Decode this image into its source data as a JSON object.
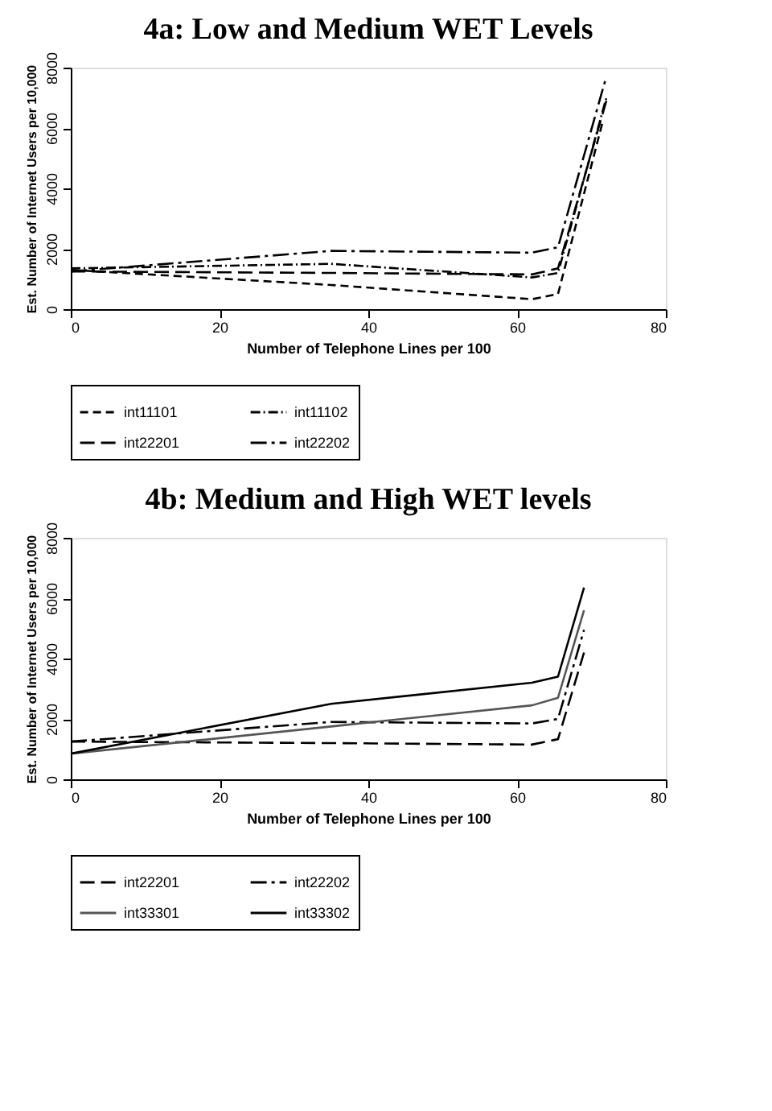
{
  "chart_data": [
    {
      "type": "line",
      "title": "4a: Low and Medium WET Levels",
      "xlabel": "Number of Telephone Lines per 100",
      "ylabel": "Est. Number of Internet Users per 10,000",
      "xlim": [
        0,
        80
      ],
      "xticks": [
        0,
        20,
        40,
        60,
        80
      ],
      "ylim": [
        0,
        8000
      ],
      "yticks": [
        0,
        2000,
        4000,
        6000,
        8000
      ],
      "grid": false,
      "legend": "bottom",
      "marker": "none",
      "series": [
        {
          "name": "int11101",
          "color": "#000000",
          "line_style": "dashed",
          "x": [
            0,
            35,
            62,
            65.5,
            71.5
          ],
          "values": [
            1300,
            800,
            330,
            500,
            6200
          ]
        },
        {
          "name": "int11102",
          "color": "#000000",
          "line_style": "dashdot",
          "x": [
            0,
            35,
            62,
            65.5,
            72
          ],
          "values": [
            1350,
            1500,
            1050,
            1200,
            7000
          ]
        },
        {
          "name": "int22201",
          "color": "#000000",
          "line_style": "longdash",
          "x": [
            0,
            35,
            62,
            65.5,
            72
          ],
          "values": [
            1250,
            1200,
            1150,
            1350,
            6900
          ]
        },
        {
          "name": "int22202",
          "color": "#000000",
          "line_style": "longdashdot",
          "x": [
            0,
            35,
            62,
            65.5,
            72
          ],
          "values": [
            1250,
            1930,
            1870,
            2050,
            7700
          ]
        }
      ]
    },
    {
      "type": "line",
      "title": "4b: Medium and High WET levels",
      "xlabel": "Number of Telephone Lines per 100",
      "ylabel": "Est. Number of Internet Users per 10,000",
      "xlim": [
        0,
        80
      ],
      "xticks": [
        0,
        20,
        40,
        60,
        80
      ],
      "ylim": [
        0,
        8000
      ],
      "yticks": [
        0,
        2000,
        4000,
        6000,
        8000
      ],
      "grid": false,
      "legend": "bottom",
      "marker": "none",
      "series": [
        {
          "name": "int22201",
          "color": "#000000",
          "line_style": "longdash",
          "x": [
            0,
            35,
            62,
            65.5,
            69
          ],
          "values": [
            1250,
            1200,
            1150,
            1330,
            4200
          ]
        },
        {
          "name": "int22202",
          "color": "#000000",
          "line_style": "longdashdot",
          "x": [
            0,
            35,
            62,
            65.5,
            69
          ],
          "values": [
            1250,
            1900,
            1850,
            2000,
            4950
          ]
        },
        {
          "name": "int33301",
          "color": "#555555",
          "line_style": "solid",
          "x": [
            0,
            35,
            62,
            65.5,
            69
          ],
          "values": [
            850,
            1750,
            2450,
            2700,
            5600
          ]
        },
        {
          "name": "int33302",
          "color": "#000000",
          "line_style": "solid",
          "x": [
            0,
            35,
            62,
            65.5,
            69
          ],
          "values": [
            850,
            2500,
            3200,
            3400,
            6350
          ]
        }
      ]
    }
  ]
}
